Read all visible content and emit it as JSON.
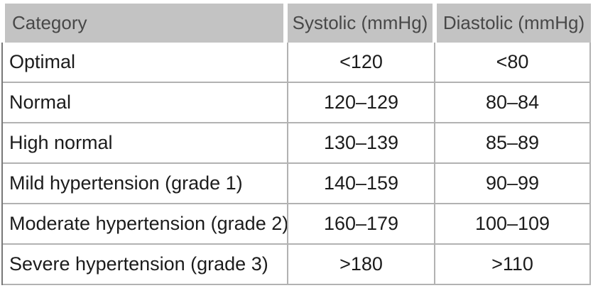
{
  "colors": {
    "header_bg": "#c3c3c3",
    "header_text": "#484848",
    "body_text": "#1c1c1c",
    "grid_line": "#b2b2b2",
    "left_border": "#787878"
  },
  "table": {
    "headers": [
      "Category",
      "Systolic (mmHg)",
      "Diastolic (mmHg)"
    ],
    "rows": [
      [
        "Optimal",
        "<120",
        "<80"
      ],
      [
        "Normal",
        "120–129",
        "80–84"
      ],
      [
        "High normal",
        "130–139",
        "85–89"
      ],
      [
        "Mild hypertension (grade 1)",
        "140–159",
        "90–99"
      ],
      [
        "Moderate hypertension (grade 2)",
        "160–179",
        "100–109"
      ],
      [
        "Severe hypertension (grade 3)",
        ">180",
        ">110"
      ]
    ]
  }
}
